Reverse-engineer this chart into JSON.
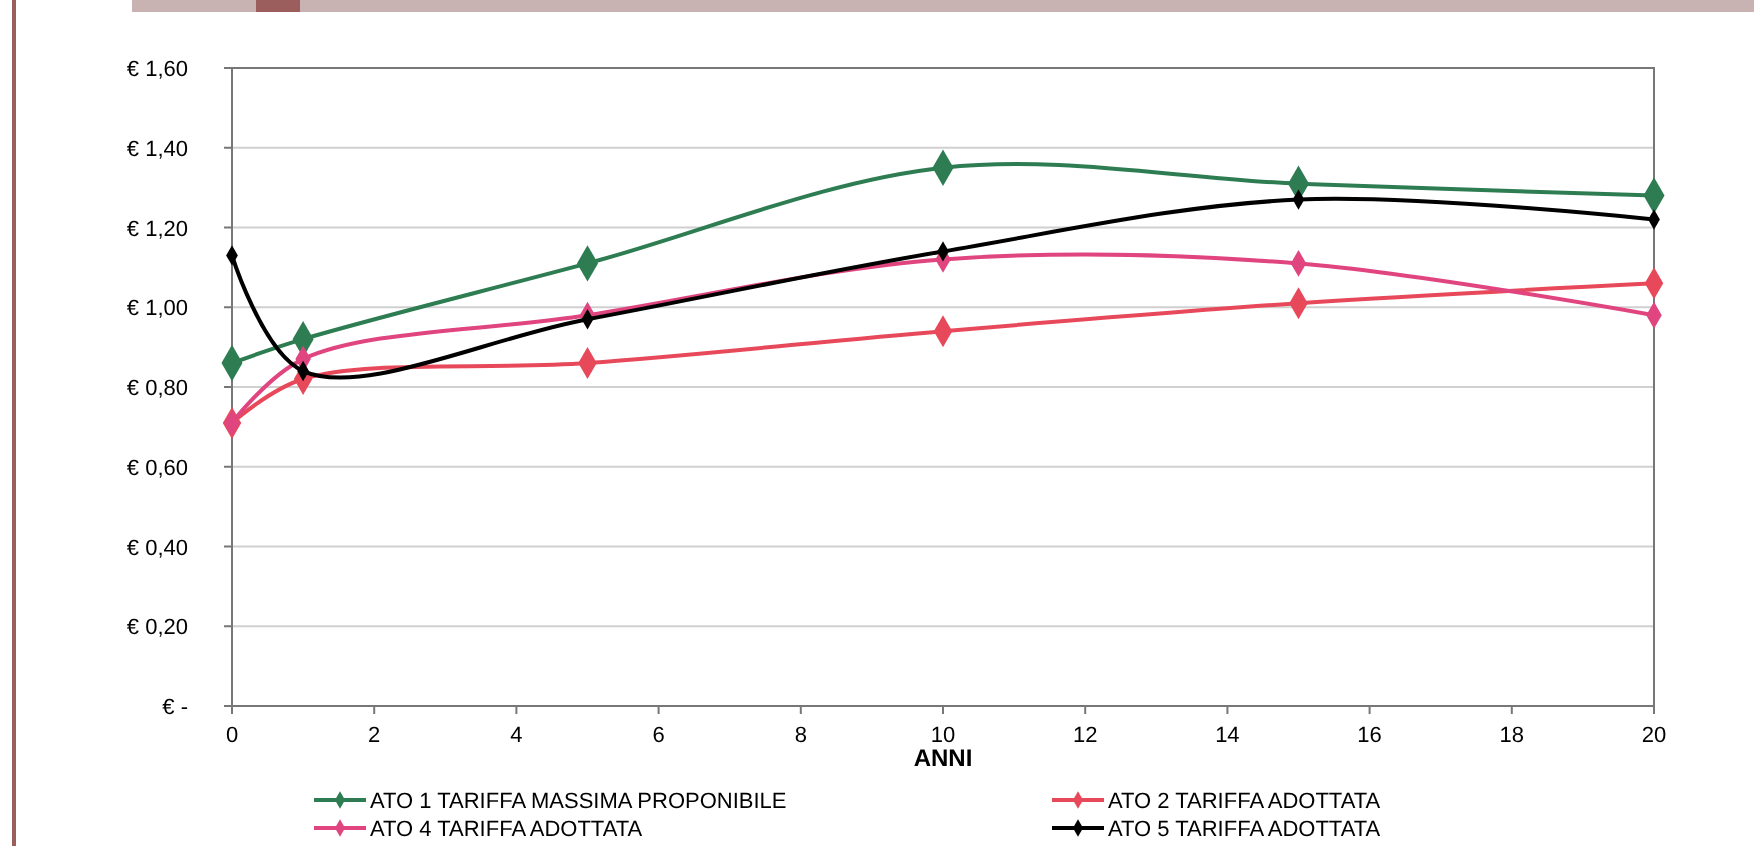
{
  "chart_data": {
    "type": "line",
    "xlabel": "ANNI",
    "x": [
      0,
      1,
      5,
      10,
      15,
      20
    ],
    "series": [
      {
        "name": "ATO 1 TARIFFA MASSIMA PROPONIBILE",
        "color": "#2e7d52",
        "values": [
          0.86,
          0.92,
          1.11,
          1.35,
          1.31,
          1.28
        ]
      },
      {
        "name": "ATO 2 TARIFFA ADOTTATA",
        "color": "#e8495a",
        "values": [
          0.71,
          0.82,
          0.86,
          0.94,
          1.01,
          1.06
        ]
      },
      {
        "name": "ATO 4 TARIFFA ADOTTATA",
        "color": "#e0457f",
        "values": [
          0.71,
          0.87,
          0.98,
          1.12,
          1.11,
          0.98
        ]
      },
      {
        "name": "ATO 5 TARIFFA ADOTTATA",
        "color": "#000000",
        "values": [
          1.13,
          0.84,
          0.97,
          1.14,
          1.27,
          1.22
        ]
      }
    ],
    "xlim": [
      0,
      20
    ],
    "xticks": [
      0,
      2,
      4,
      6,
      8,
      10,
      12,
      14,
      16,
      18,
      20
    ],
    "ylim": [
      0,
      1.6
    ],
    "yticks": [
      {
        "value": 0,
        "label": "€ -"
      },
      {
        "value": 0.2,
        "label": "€ 0,20"
      },
      {
        "value": 0.4,
        "label": "€ 0,40"
      },
      {
        "value": 0.6,
        "label": "€ 0,60"
      },
      {
        "value": 0.8,
        "label": "€ 0,80"
      },
      {
        "value": 1,
        "label": "€ 1,00"
      },
      {
        "value": 1.2,
        "label": "€ 1,20"
      },
      {
        "value": 1.4,
        "label": "€ 1,40"
      },
      {
        "value": 1.6,
        "label": "€ 1,60"
      }
    ],
    "grid": "y",
    "legend": "bottom",
    "marker": "diamond",
    "line_style": "solid"
  }
}
